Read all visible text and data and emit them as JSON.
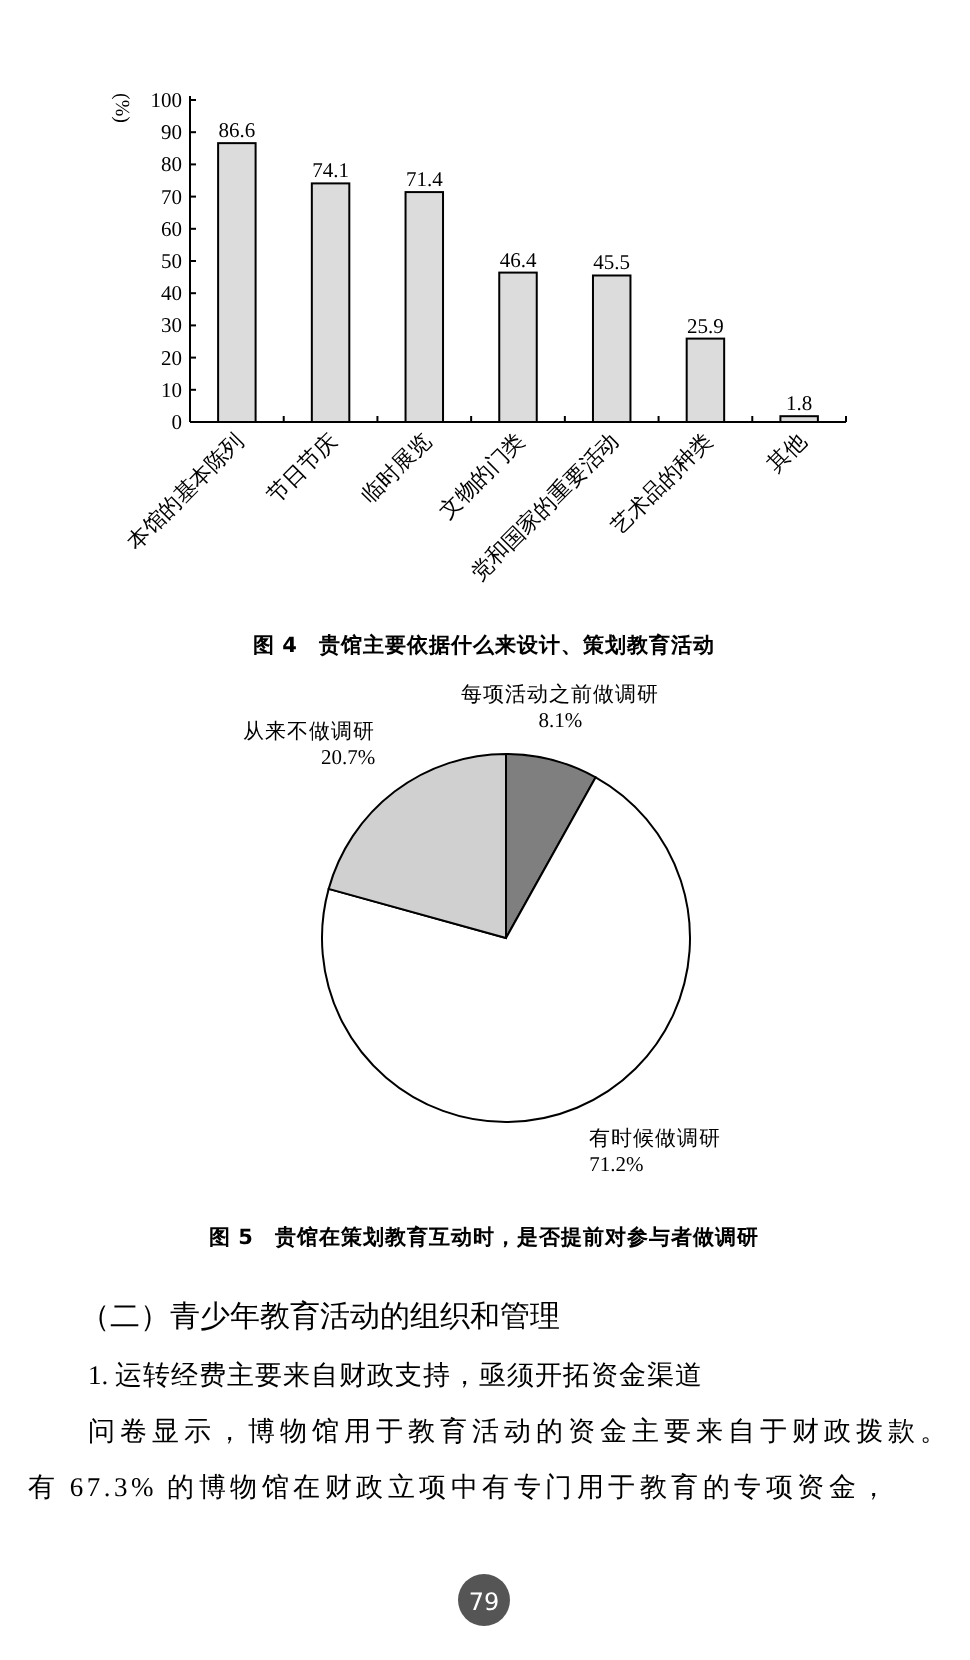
{
  "chart_data": [
    {
      "type": "bar",
      "title": "图 4　贵馆主要依据什么来设计、策划教育活动",
      "ylabel": "(%)",
      "categories": [
        "本馆的基本陈列",
        "节日节庆",
        "临时展览",
        "文物的门类",
        "党和国家的重要活动",
        "艺术品的种类",
        "其他"
      ],
      "values": [
        86.6,
        74.1,
        71.4,
        46.4,
        45.5,
        25.9,
        1.8
      ],
      "color": "#dcdcdc",
      "ylim": [
        0,
        100
      ],
      "yticks": [
        0,
        10,
        20,
        30,
        40,
        50,
        60,
        70,
        80,
        90,
        100
      ],
      "data_labels": true,
      "grid": false
    },
    {
      "type": "pie",
      "title": "图 5　贵馆在策划教育互动时，是否提前对参与者做调研",
      "categories": [
        "每项活动之前做调研",
        "有时候做调研",
        "从来不做调研"
      ],
      "values": [
        8.1,
        71.2,
        20.7
      ],
      "value_labels": [
        "8.1%",
        "71.2%",
        "20.7%"
      ],
      "colors": [
        "#7f7f7f",
        "#ffffff",
        "#d0d0d0"
      ]
    },
    {
      "type": "other",
      "annotations": [
        "（二）青少年教育活动的组织和管理",
        "1. 运转经费主要来自财政支持，亟须开拓资金渠道",
        "问卷显示，博物馆用于教育活动的资金主要来自于财政拨款。",
        "有 67.3% 的博物馆在财政立项中有专门用于教育的专项资金，",
        "79"
      ]
    }
  ]
}
